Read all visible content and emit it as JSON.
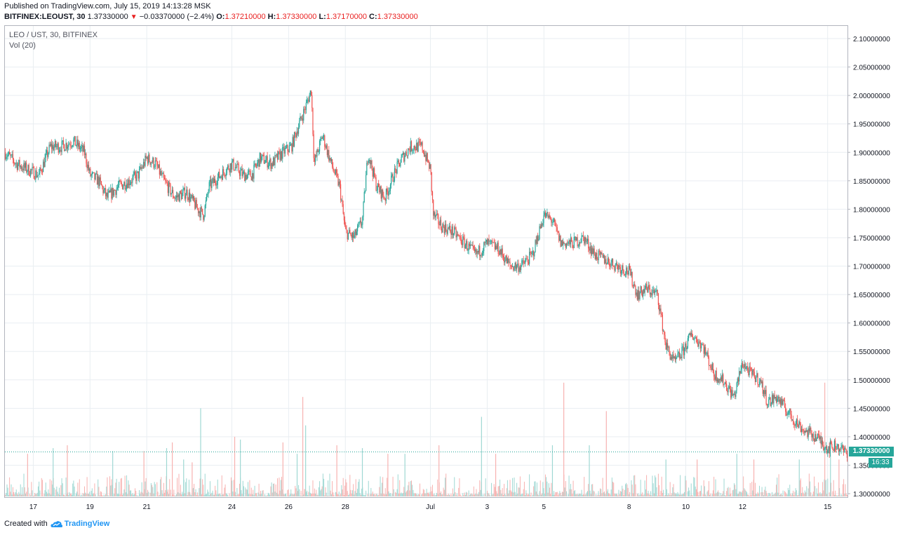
{
  "header": {
    "published": "Published on TradingView.com, July 15, 2019 14:13:28 MSK",
    "symbol": "BITFINEX:LEOUST, 30",
    "last": "1.37330000",
    "arrow": "▼",
    "change": "−0.03370000 (−2.4%)",
    "o_label": "O:",
    "o": "1.37210000",
    "h_label": "H:",
    "h": "1.37330000",
    "l_label": "L:",
    "l": "1.37170000",
    "c_label": "C:",
    "c": "1.37330000"
  },
  "legend": {
    "pair": "LEO / UST, 30, BITFINEX",
    "volume": "Vol (20)"
  },
  "price_tag": "1.37330000",
  "timer": "16:33",
  "footer": {
    "created": "Created with",
    "brand": "TradingView"
  },
  "colors": {
    "up": "#26a69a",
    "down": "#ef5350",
    "up_vol": "#9fd8d3",
    "down_vol": "#f7b2b0",
    "grid": "#e9eef2"
  },
  "chart_data": {
    "type": "candlestick",
    "title": "LEO / UST, 30, BITFINEX",
    "interval": "30",
    "ylim": [
      1.29,
      2.11
    ],
    "yticks": [
      "2.10000000",
      "2.05000000",
      "2.00000000",
      "1.95000000",
      "1.90000000",
      "1.85000000",
      "1.80000000",
      "1.75000000",
      "1.70000000",
      "1.65000000",
      "1.60000000",
      "1.55000000",
      "1.50000000",
      "1.45000000",
      "1.40000000",
      "1.35000000",
      "1.30000000"
    ],
    "ytick_values": [
      2.1,
      2.05,
      2.0,
      1.95,
      1.9,
      1.85,
      1.8,
      1.75,
      1.7,
      1.65,
      1.6,
      1.55,
      1.5,
      1.45,
      1.4,
      1.35,
      1.3
    ],
    "xticks": [
      "17",
      "19",
      "21",
      "24",
      "26",
      "28",
      "Jul",
      "3",
      "5",
      "8",
      "10",
      "12",
      "15"
    ],
    "xtick_days": [
      17,
      19,
      21,
      24,
      26,
      28,
      31,
      33,
      35,
      38,
      40,
      42,
      45
    ],
    "x_range_days": [
      16.0,
      45.7
    ],
    "last_price": 1.3733,
    "price_path_close": [
      [
        16.0,
        1.9
      ],
      [
        16.4,
        1.88
      ],
      [
        16.8,
        1.87
      ],
      [
        17.2,
        1.86
      ],
      [
        17.6,
        1.91
      ],
      [
        18.0,
        1.91
      ],
      [
        18.4,
        1.92
      ],
      [
        18.8,
        1.9
      ],
      [
        19.0,
        1.86
      ],
      [
        19.3,
        1.85
      ],
      [
        19.6,
        1.82
      ],
      [
        20.0,
        1.84
      ],
      [
        20.4,
        1.85
      ],
      [
        20.7,
        1.86
      ],
      [
        21.0,
        1.89
      ],
      [
        21.3,
        1.88
      ],
      [
        21.6,
        1.85
      ],
      [
        22.0,
        1.82
      ],
      [
        22.4,
        1.83
      ],
      [
        22.8,
        1.8
      ],
      [
        23.0,
        1.79
      ],
      [
        23.2,
        1.84
      ],
      [
        23.6,
        1.86
      ],
      [
        24.0,
        1.88
      ],
      [
        24.4,
        1.86
      ],
      [
        24.7,
        1.86
      ],
      [
        25.0,
        1.89
      ],
      [
        25.4,
        1.88
      ],
      [
        25.8,
        1.9
      ],
      [
        26.1,
        1.91
      ],
      [
        26.3,
        1.94
      ],
      [
        26.6,
        1.98
      ],
      [
        26.8,
        2.01
      ],
      [
        26.9,
        1.88
      ],
      [
        27.2,
        1.93
      ],
      [
        27.5,
        1.88
      ],
      [
        27.8,
        1.84
      ],
      [
        28.0,
        1.76
      ],
      [
        28.3,
        1.75
      ],
      [
        28.6,
        1.78
      ],
      [
        28.8,
        1.9
      ],
      [
        29.1,
        1.84
      ],
      [
        29.4,
        1.82
      ],
      [
        29.7,
        1.86
      ],
      [
        30.0,
        1.89
      ],
      [
        30.3,
        1.91
      ],
      [
        30.7,
        1.91
      ],
      [
        31.0,
        1.87
      ],
      [
        31.1,
        1.79
      ],
      [
        31.4,
        1.77
      ],
      [
        31.8,
        1.76
      ],
      [
        32.2,
        1.74
      ],
      [
        32.6,
        1.72
      ],
      [
        33.0,
        1.74
      ],
      [
        33.4,
        1.73
      ],
      [
        33.8,
        1.7
      ],
      [
        34.2,
        1.7
      ],
      [
        34.6,
        1.72
      ],
      [
        35.0,
        1.79
      ],
      [
        35.3,
        1.78
      ],
      [
        35.6,
        1.74
      ],
      [
        36.0,
        1.74
      ],
      [
        36.4,
        1.75
      ],
      [
        36.8,
        1.72
      ],
      [
        37.2,
        1.71
      ],
      [
        37.6,
        1.7
      ],
      [
        38.0,
        1.69
      ],
      [
        38.3,
        1.65
      ],
      [
        38.6,
        1.66
      ],
      [
        39.0,
        1.65
      ],
      [
        39.3,
        1.56
      ],
      [
        39.6,
        1.53
      ],
      [
        39.9,
        1.55
      ],
      [
        40.2,
        1.58
      ],
      [
        40.6,
        1.56
      ],
      [
        41.0,
        1.51
      ],
      [
        41.3,
        1.5
      ],
      [
        41.7,
        1.47
      ],
      [
        42.0,
        1.53
      ],
      [
        42.3,
        1.51
      ],
      [
        42.6,
        1.5
      ],
      [
        42.9,
        1.46
      ],
      [
        43.2,
        1.47
      ],
      [
        43.5,
        1.45
      ],
      [
        43.8,
        1.43
      ],
      [
        44.2,
        1.41
      ],
      [
        44.6,
        1.4
      ],
      [
        45.0,
        1.38
      ],
      [
        45.3,
        1.385
      ],
      [
        45.6,
        1.3733
      ]
    ],
    "volume_spikes": [
      [
        16.8,
        1.37
      ],
      [
        17.7,
        1.38
      ],
      [
        18.2,
        1.385
      ],
      [
        19.8,
        1.375
      ],
      [
        20.9,
        1.375
      ],
      [
        21.7,
        1.38
      ],
      [
        21.9,
        1.39
      ],
      [
        22.3,
        1.36
      ],
      [
        22.6,
        1.355
      ],
      [
        22.9,
        1.45
      ],
      [
        24.1,
        1.4
      ],
      [
        24.3,
        1.395
      ],
      [
        25.8,
        1.39
      ],
      [
        26.3,
        1.37
      ],
      [
        26.5,
        1.47
      ],
      [
        26.6,
        1.42
      ],
      [
        27.7,
        1.385
      ],
      [
        28.6,
        1.38
      ],
      [
        29.5,
        1.37
      ],
      [
        30.1,
        1.37
      ],
      [
        31.3,
        1.385
      ],
      [
        32.8,
        1.435
      ],
      [
        33.3,
        1.37
      ],
      [
        35.3,
        1.385
      ],
      [
        35.7,
        1.495
      ],
      [
        36.6,
        1.385
      ],
      [
        37.2,
        1.445
      ],
      [
        39.3,
        1.36
      ],
      [
        40.4,
        1.36
      ],
      [
        41.8,
        1.37
      ],
      [
        42.4,
        1.36
      ],
      [
        44.0,
        1.36
      ],
      [
        44.9,
        1.495
      ],
      [
        45.1,
        1.37
      ],
      [
        45.4,
        1.36
      ]
    ],
    "volume_max_price_level": 1.5
  }
}
